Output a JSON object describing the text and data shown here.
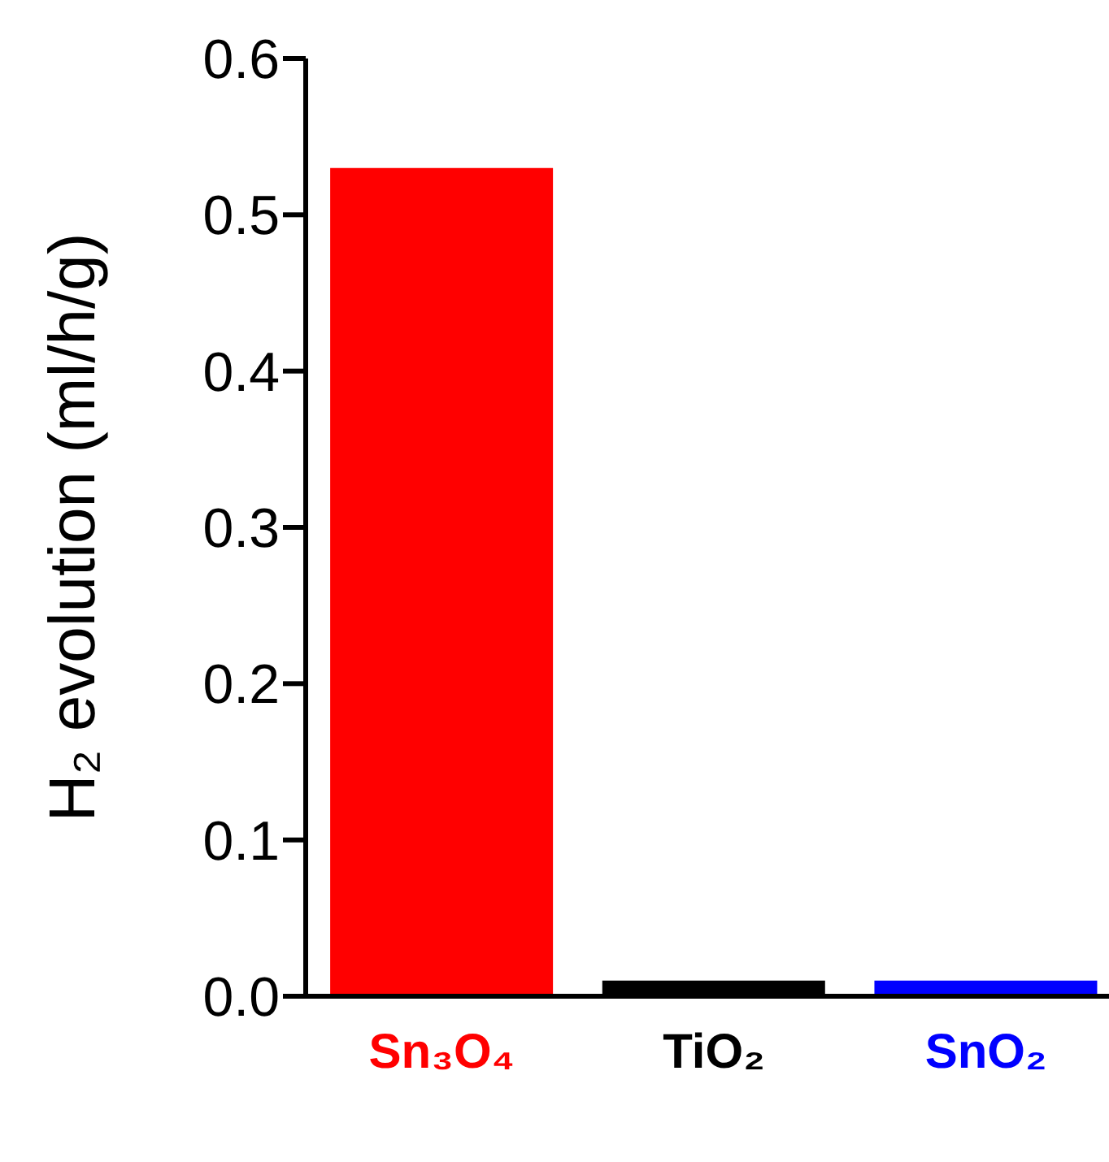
{
  "chart_data": {
    "type": "bar",
    "ylabel": "H₂ evolution  (ml/h/g)",
    "categories": [
      "Sn₃O₄",
      "TiO₂",
      "SnO₂"
    ],
    "values": [
      0.53,
      0.01,
      0.01
    ],
    "colors": [
      "#ff0000",
      "#000000",
      "#0000ff"
    ],
    "ylim": [
      0,
      0.6
    ],
    "yticks": [
      {
        "value": 0,
        "label": "0.0"
      },
      {
        "value": 0.1,
        "label": "0.1"
      },
      {
        "value": 0.2,
        "label": "0.2"
      },
      {
        "value": 0.3,
        "label": "0.3"
      },
      {
        "value": 0.4,
        "label": "0.4"
      },
      {
        "value": 0.5,
        "label": "0.5"
      },
      {
        "value": 0.6,
        "label": "0.6"
      }
    ],
    "grid": false,
    "legend": false
  }
}
